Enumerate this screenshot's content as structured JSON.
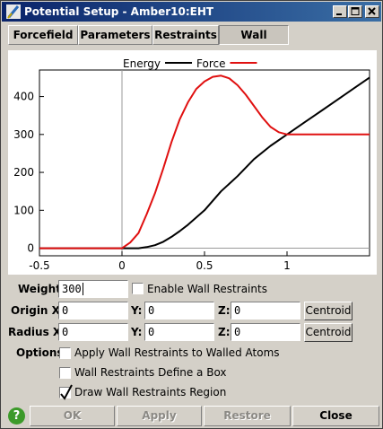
{
  "window": {
    "title": "Potential Setup - Amber10:EHT"
  },
  "tabs": [
    {
      "label": "Forcefield",
      "active": false
    },
    {
      "label": "Parameters",
      "active": false
    },
    {
      "label": "Restraints",
      "active": false
    },
    {
      "label": "Wall",
      "active": true
    }
  ],
  "chart_data": {
    "type": "line",
    "xlim": [
      -0.5,
      1.5
    ],
    "ylim": [
      -20,
      470
    ],
    "x_ticks": [
      -0.5,
      0,
      0.5,
      1
    ],
    "x_tick_labels": [
      "-0.5",
      "0",
      "0.5",
      "1"
    ],
    "y_ticks": [
      0,
      100,
      200,
      300,
      400
    ],
    "y_tick_labels": [
      "0",
      "100",
      "200",
      "300",
      "400"
    ],
    "grid": false,
    "legend": "top-center",
    "series": [
      {
        "name": "Energy",
        "color": "#000000",
        "x": [
          -0.5,
          0.0,
          0.1,
          0.15,
          0.2,
          0.25,
          0.3,
          0.35,
          0.4,
          0.5,
          0.6,
          0.7,
          0.8,
          0.9,
          1.0,
          1.1,
          1.2,
          1.3,
          1.4,
          1.5
        ],
        "y": [
          0,
          0,
          0,
          3,
          8,
          17,
          30,
          45,
          62,
          100,
          150,
          190,
          235,
          270,
          300,
          330,
          360,
          390,
          420,
          450
        ]
      },
      {
        "name": "Force",
        "color": "#e01010",
        "x": [
          -0.5,
          0.0,
          0.05,
          0.1,
          0.15,
          0.2,
          0.25,
          0.3,
          0.35,
          0.4,
          0.45,
          0.5,
          0.55,
          0.6,
          0.65,
          0.7,
          0.75,
          0.8,
          0.85,
          0.9,
          0.95,
          1.0,
          1.1,
          1.2,
          1.3,
          1.4,
          1.5
        ],
        "y": [
          0,
          0,
          15,
          40,
          90,
          145,
          210,
          280,
          340,
          385,
          420,
          440,
          452,
          455,
          448,
          430,
          405,
          375,
          345,
          320,
          306,
          300,
          300,
          300,
          300,
          300,
          300
        ]
      }
    ]
  },
  "form": {
    "weight_label": "Weight:",
    "weight_value": "300",
    "enable_wall_label": "Enable Wall Restraints",
    "origin_label": "Origin X:",
    "origin_x": "0",
    "origin_y_label": "Y:",
    "origin_y": "0",
    "origin_z_label": "Z:",
    "origin_z": "0",
    "radius_label": "Radius X:",
    "radius_x": "0",
    "radius_y_label": "Y:",
    "radius_y": "0",
    "radius_z_label": "Z:",
    "radius_z": "0",
    "centroid_label": "Centroid",
    "options_label": "Options:",
    "opt_apply_label": "Apply Wall Restraints to Walled Atoms",
    "opt_apply_checked": false,
    "opt_box_label": "Wall Restraints Define a Box",
    "opt_box_checked": false,
    "opt_draw_label": "Draw Wall Restraints Region",
    "opt_draw_checked": true
  },
  "buttons": {
    "help": "?",
    "ok": "OK",
    "apply": "Apply",
    "restore": "Restore",
    "close": "Close"
  }
}
